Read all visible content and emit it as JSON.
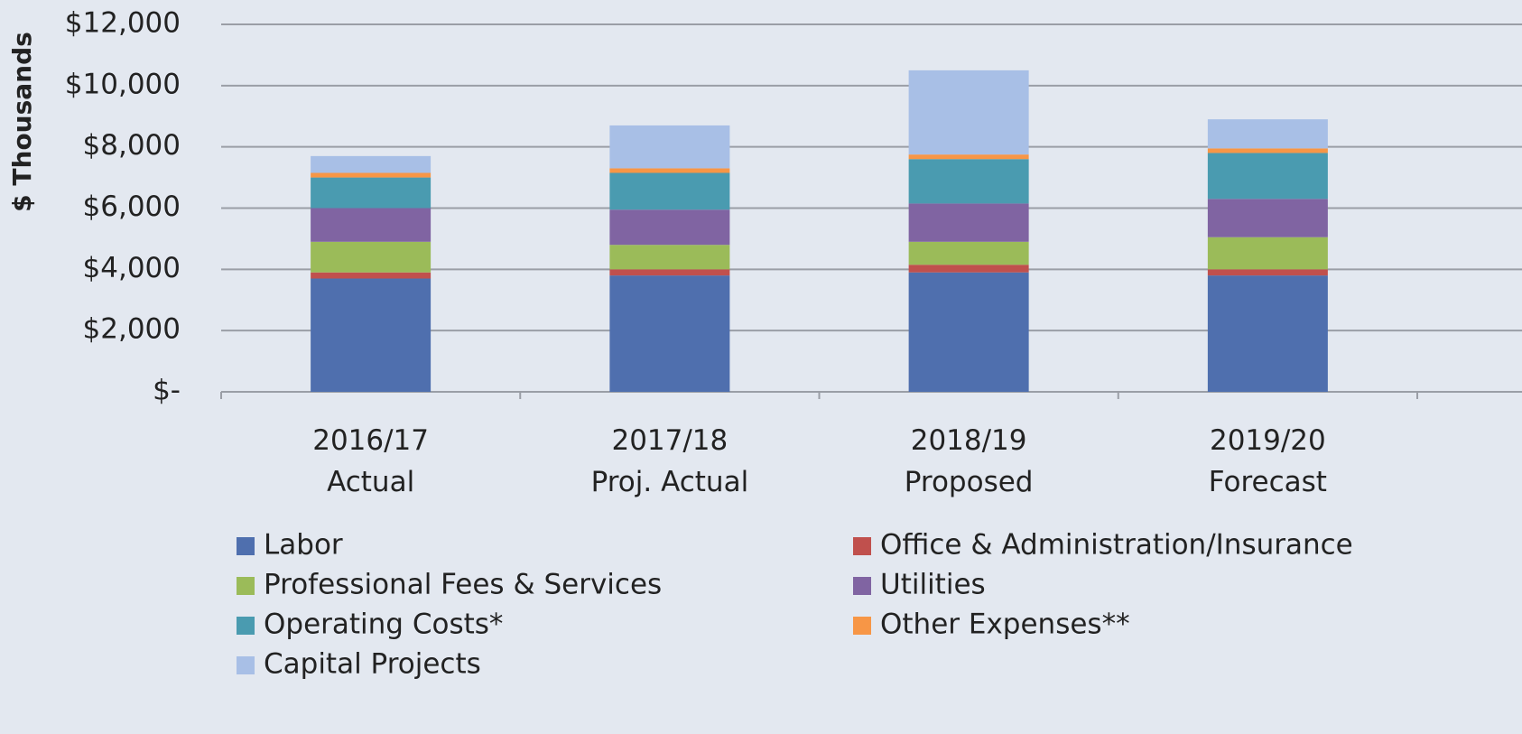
{
  "chart_data": {
    "type": "stacked_bar",
    "y_label": "$ Thousands",
    "categories": [
      "2016/17\nActual",
      "2017/18\nProj. Actual",
      "2018/19\nProposed",
      "2019/20\nForecast"
    ],
    "series": [
      {
        "name": "Labor",
        "color": "#4f6fae",
        "values": [
          3700,
          3800,
          3900,
          3800
        ]
      },
      {
        "name": "Office & Administration/Insurance",
        "color": "#c0504d",
        "values": [
          200,
          200,
          250,
          200
        ]
      },
      {
        "name": "Professional Fees & Services",
        "color": "#9bbb59",
        "values": [
          1000,
          800,
          750,
          1050
        ]
      },
      {
        "name": "Utilities",
        "color": "#8064a2",
        "values": [
          1100,
          1150,
          1250,
          1250
        ]
      },
      {
        "name": "Operating Costs*",
        "color": "#4a9bb0",
        "values": [
          1000,
          1200,
          1450,
          1500
        ]
      },
      {
        "name": "Other Expenses**",
        "color": "#f79646",
        "values": [
          150,
          150,
          150,
          150
        ]
      },
      {
        "name": "Capital Projects",
        "color": "#a8bfe6",
        "values": [
          550,
          1400,
          2750,
          950
        ]
      }
    ],
    "ylim": [
      0,
      12000
    ],
    "yticks": [
      {
        "value": 0,
        "label": "$-"
      },
      {
        "value": 2000,
        "label": "$2,000"
      },
      {
        "value": 4000,
        "label": "$4,000"
      },
      {
        "value": 6000,
        "label": "$6,000"
      },
      {
        "value": 8000,
        "label": "$8,000"
      },
      {
        "value": 10000,
        "label": "$10,000"
      },
      {
        "value": 12000,
        "label": "$12,000"
      }
    ],
    "grid": true
  }
}
